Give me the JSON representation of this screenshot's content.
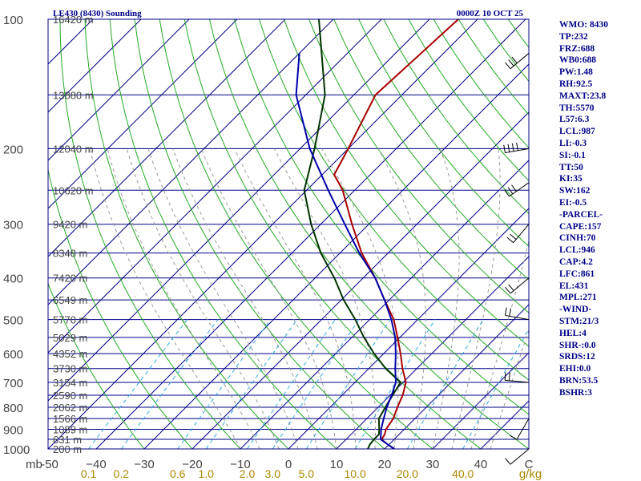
{
  "header": {
    "title": "LE430 (8430) Sounding",
    "time": "0000Z 10 OCT 25"
  },
  "indices": [
    "WMO: 8430",
    "TP:232",
    "FRZ:688",
    "WB0:688",
    "PW:1.48",
    "RH:92.5",
    "MAXT:23.8",
    "TH:5570",
    "L57:6.3",
    "LCL:987",
    "LI:-0.3",
    "SI:-0.1",
    "TT:50",
    "KI:35",
    "SW:162",
    "EI:-0.5",
    "-PARCEL-",
    "CAPE:157",
    "CINH:70",
    "LCL:946",
    "CAP:4.2",
    "LFC:861",
    "EL:431",
    "MPL:271",
    "-WIND-",
    "STM:21/3",
    "HEL:4",
    "SHR-:0.0",
    "SRDS:12",
    "EHI:0.0",
    "BRN:53.5",
    "BSHR:3"
  ],
  "colors": {
    "isobar": "#000088",
    "isotherm": "#000088",
    "dry_adiabat": "#22aa22",
    "moist_adiabat": "#999999",
    "mixing_ratio": "#33aadd",
    "temperature": "#aa0000",
    "dewpoint": "#003300",
    "parcel": "#0000aa",
    "label_text": "#444444",
    "mixing_label": "#aa8800"
  },
  "chart_data": {
    "type": "line",
    "title": "LE430 (8430) Sounding",
    "subtitle": "0000Z 10 OCT 25",
    "xlabel": "°C",
    "ylabel": "mb",
    "pressure_range": [
      1000,
      100
    ],
    "temperature_range": [
      -50,
      50
    ],
    "pressure_ticks": [
      100,
      200,
      300,
      400,
      500,
      600,
      700,
      800,
      900,
      1000
    ],
    "pressure_tick_labels": [
      "100",
      "200",
      "300",
      "400",
      "500",
      "600",
      "700",
      "800",
      "900",
      "1000"
    ],
    "mb_label": "mb",
    "temperature_ticks": [
      -50,
      -40,
      -30,
      -20,
      -10,
      0,
      10,
      20,
      30,
      40,
      50
    ],
    "temperature_tick_labels": [
      "-50",
      "−40",
      "−30",
      "−20",
      "−10",
      "0",
      "10",
      "20",
      "30",
      "40",
      "C"
    ],
    "mixing_ratio_ticks": [
      0.1,
      0.2,
      0.6,
      1.0,
      2.0,
      3.0,
      5.0,
      10.0,
      20.0,
      40.0
    ],
    "mixing_ratio_labels": [
      "0.1",
      "0.2",
      "0.6",
      "1.0",
      "2.0",
      "3.0",
      "5.0",
      "10.0",
      "20.0",
      "40.0"
    ],
    "mixing_ratio_unit": "g/kg",
    "heights": [
      {
        "p": 100,
        "label": "16420 m"
      },
      {
        "p": 150,
        "label": "13880 m"
      },
      {
        "p": 200,
        "label": "12040 m"
      },
      {
        "p": 250,
        "label": "10620 m"
      },
      {
        "p": 300,
        "label": "9420 m"
      },
      {
        "p": 350,
        "label": "8348 m"
      },
      {
        "p": 400,
        "label": "7420 m"
      },
      {
        "p": 450,
        "label": "6549 m"
      },
      {
        "p": 500,
        "label": "5770 m"
      },
      {
        "p": 550,
        "label": "5029 m"
      },
      {
        "p": 600,
        "label": "4352 m"
      },
      {
        "p": 650,
        "label": "3730 m"
      },
      {
        "p": 700,
        "label": "3154 m"
      },
      {
        "p": 750,
        "label": "2590 m"
      },
      {
        "p": 800,
        "label": "2062 m"
      },
      {
        "p": 850,
        "label": "1566 m"
      },
      {
        "p": 900,
        "label": "1089 m"
      },
      {
        "p": 950,
        "label": "631 m"
      },
      {
        "p": 1000,
        "label": "200 m"
      }
    ],
    "series": [
      {
        "name": "Temperature",
        "points": [
          [
            1000,
            22.0
          ],
          [
            975,
            19.6
          ],
          [
            950,
            17.4
          ],
          [
            925,
            17.0
          ],
          [
            900,
            16.2
          ],
          [
            850,
            15.5
          ],
          [
            800,
            14.0
          ],
          [
            750,
            12.6
          ],
          [
            700,
            10.6
          ],
          [
            650,
            7.0
          ],
          [
            600,
            3.5
          ],
          [
            550,
            -0.5
          ],
          [
            500,
            -5.0
          ],
          [
            450,
            -11.0
          ],
          [
            400,
            -17.5
          ],
          [
            350,
            -25.5
          ],
          [
            300,
            -33.5
          ],
          [
            250,
            -42.5
          ],
          [
            230,
            -47.5
          ],
          [
            200,
            -50.0
          ],
          [
            150,
            -55.5
          ],
          [
            100,
            -54.0
          ]
        ]
      },
      {
        "name": "Dewpoint",
        "points": [
          [
            1000,
            16.5
          ],
          [
            975,
            16.0
          ],
          [
            950,
            15.8
          ],
          [
            925,
            15.8
          ],
          [
            900,
            14.8
          ],
          [
            850,
            12.5
          ],
          [
            800,
            11.5
          ],
          [
            750,
            10.5
          ],
          [
            700,
            9.5
          ],
          [
            650,
            3.5
          ],
          [
            600,
            -2.0
          ],
          [
            550,
            -7.5
          ],
          [
            500,
            -13.0
          ],
          [
            450,
            -19.5
          ],
          [
            400,
            -26.0
          ],
          [
            350,
            -34.0
          ],
          [
            300,
            -42.0
          ],
          [
            250,
            -50.5
          ],
          [
            200,
            -57.0
          ],
          [
            150,
            -66.0
          ],
          [
            100,
            -83.0
          ]
        ]
      },
      {
        "name": "Parcel",
        "points": [
          [
            1000,
            22.0
          ],
          [
            975,
            19.6
          ],
          [
            950,
            17.2
          ],
          [
            900,
            15.2
          ],
          [
            850,
            13.5
          ],
          [
            800,
            11.8
          ],
          [
            750,
            10.3
          ],
          [
            700,
            8.5
          ],
          [
            650,
            5.5
          ],
          [
            600,
            2.5
          ],
          [
            550,
            -1.0
          ],
          [
            500,
            -5.5
          ],
          [
            450,
            -11.0
          ],
          [
            400,
            -17.5
          ],
          [
            350,
            -26.0
          ],
          [
            300,
            -35.0
          ],
          [
            250,
            -45.5
          ],
          [
            200,
            -58.0
          ],
          [
            150,
            -72.0
          ],
          [
            120,
            -80.0
          ]
        ]
      }
    ],
    "wind_barbs": [
      {
        "p": 120,
        "dir": 230,
        "spd": 25
      },
      {
        "p": 200,
        "dir": 260,
        "spd": 35
      },
      {
        "p": 240,
        "dir": 235,
        "spd": 30
      },
      {
        "p": 300,
        "dir": 220,
        "spd": 20
      },
      {
        "p": 400,
        "dir": 230,
        "spd": 20
      },
      {
        "p": 500,
        "dir": 280,
        "spd": 15
      },
      {
        "p": 700,
        "dir": 275,
        "spd": 15
      },
      {
        "p": 850,
        "dir": 210,
        "spd": 10
      },
      {
        "p": 1000,
        "dir": 230,
        "spd": 5
      }
    ]
  }
}
